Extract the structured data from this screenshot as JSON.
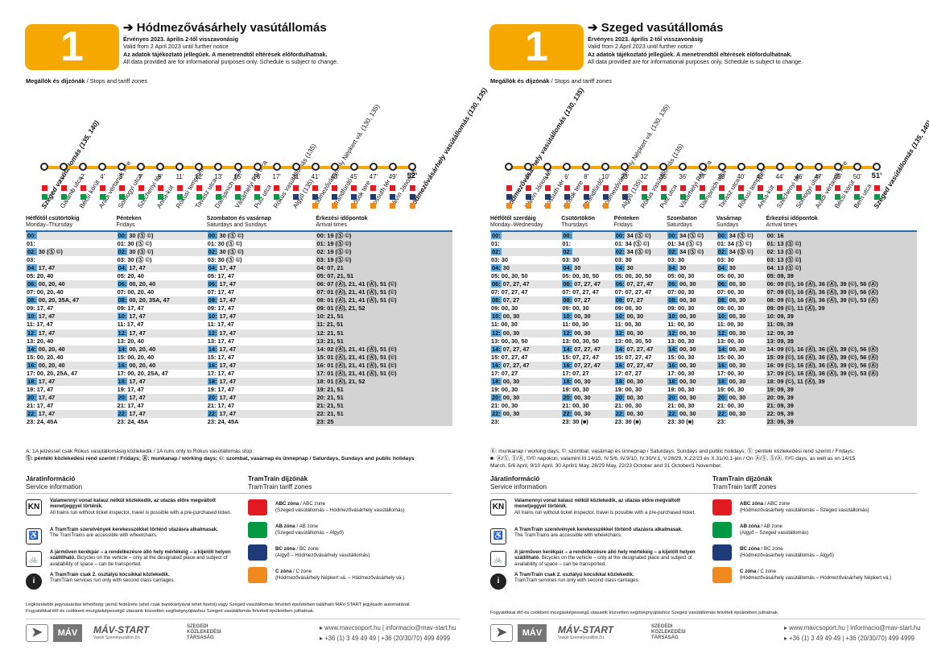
{
  "colors": {
    "accent": "#f5a800",
    "blue": "#5ba9df",
    "zoneA": "#e21b23",
    "zoneB": "#009a44",
    "zoneC": "#1f3a79",
    "zoneD": "#f08a1c"
  },
  "common": {
    "line_number": "1",
    "valid_hu": "Érvényes 2023. április 2-től visszavonásig",
    "valid_en": "Valid from 2 April 2023 until further notice",
    "info_hu": "Az adatok tájékoztató jellegűek. A menetrendtől eltérések előfordulhatnak.",
    "info_en": "All data provided are for informational purposes only. Schedule is subject to change.",
    "stops_label_hu": "Megállók és díjzónák",
    "stops_label_en": " / Stops and tariff zones",
    "service_hu": "Járatinformáció",
    "service_en": "Service information",
    "tariff_hu": "TramTrain díjzónák",
    "tariff_en": "TramTrain tariff zones",
    "kn_icon": "KN",
    "info1_b": "Valamennyi vonat kalauz nélkül közlekedik, az utazás előre megváltott menetjeggyel történik.",
    "info1_n": "All trains run without ticket inspector, travel is possible with a pre-purchased ticket.",
    "info2_b": "A TramTrain szerelvények kerekesszékkel történő utazásra alkalmasak.",
    "info2_n": "The TramTrains are accessible with wheelchairs.",
    "info3_b": "A járműven kerékpár – a rendelkezésre álló hely mértékéig – a kijelölt helyen szállítható.",
    "info3_n": "Bicycles on the vehicle – only at the designated place and subject of availability of space – can be transported.",
    "info4_b": "A TramTrain csak 2. osztályú kocsikkal közlekedik.",
    "info4_n": "TramTrain services run only with second class carriages.",
    "info_icon": "i",
    "z1_t": "ABC zóna",
    "z1_e": " / ABC zone",
    "z2_t": "AB zóna",
    "z2_e": " / AB zone",
    "z3_t": "BC zóna",
    "z3_e": " / BC zone",
    "z4_t": "C zóna",
    "z4_e": " / C zone",
    "web": "www.mavcsoport.hu | informacio@mav-start.hu",
    "phone": "+36 (1) 3 49 49 49 | +36 (20/30/70) 499 4999",
    "logo1": "MÁV",
    "logo2": "MÁV-START",
    "logo2_sub": "Vasúti Személyszállító Zrt.",
    "logo3": "SZEGEDI KÖZLEKEDÉSI TÁRSASÁG"
  },
  "left": {
    "title": "Hódmezővásárhely vasútállomás",
    "stops": [
      "Szeged vasútállomás (135, 140)",
      "Galamb utca",
      "Bécsi körút",
      "Aradi vértanúk tere",
      "Somogyi utca",
      "Széchenyi tér",
      "Anna-kút",
      "Rókusi templom",
      "Tavasz utca",
      "Damjanich utca",
      "Vásárhelyi Pál utca",
      "Pulz utca",
      "Rókus vasútállomás (135)",
      "Algyő (135)",
      "Hódmezővásárhely Népkert vá. (130, 135)",
      "Strandfürdő",
      "Hősök tere",
      "Kossuth tér",
      "Kálvin János tér",
      "Hódmezővásárhely vasútállomás (130, 135)"
    ],
    "minutes": [
      "",
      "1'",
      "2'",
      "4'",
      "5'",
      "7'",
      "9'",
      "11'",
      "12'",
      "13'",
      "15'",
      "16'",
      "17'",
      "31'",
      "41'",
      "43'",
      "45'",
      "47'",
      "49'",
      "52'"
    ],
    "zones": [
      [
        "a",
        "b"
      ],
      [
        "a",
        "b"
      ],
      [
        "a",
        "b"
      ],
      [
        "a",
        "b"
      ],
      [
        "a",
        "b"
      ],
      [
        "a",
        "b"
      ],
      [
        "a",
        "b"
      ],
      [
        "a",
        "b"
      ],
      [
        "a",
        "b"
      ],
      [
        "a",
        "b"
      ],
      [
        "a",
        "b"
      ],
      [
        "a",
        "b"
      ],
      [
        "a",
        "b"
      ],
      [
        "a",
        "c"
      ],
      [
        "a",
        "c",
        "d"
      ],
      [
        "a",
        "c",
        "d"
      ],
      [
        "a",
        "c",
        "d"
      ],
      [
        "a",
        "c",
        "d"
      ],
      [
        "a",
        "c",
        "d"
      ],
      [
        "a",
        "c",
        "d"
      ]
    ],
    "headers": [
      [
        "Hétfőtől csütörtökig",
        "Monday–Thursday"
      ],
      [
        "Pénteken",
        "Fridays"
      ],
      [
        "Szombaton és vasárnap",
        "Saturdays and Sundays"
      ],
      [
        "Érkezési időpontok",
        "Arrival times"
      ]
    ],
    "rows": [
      [
        [
          "00:",
          ""
        ],
        [
          "00: 30 (Ⓢ ©)",
          ""
        ],
        [
          "00: 30 (Ⓢ ©)",
          ""
        ],
        [
          "00: 19 (Ⓢ ©)",
          ""
        ]
      ],
      [
        [
          "01:",
          ""
        ],
        [
          "01: 30 (Ⓢ ©)",
          ""
        ],
        [
          "01: 30 (Ⓢ ©)",
          ""
        ],
        [
          "01: 19 (Ⓢ ©)",
          ""
        ]
      ],
      [
        [
          "02: 30 (Ⓢ ©)",
          ""
        ],
        [
          "02: 30 (Ⓢ ©)",
          ""
        ],
        [
          "02: 30 (Ⓢ ©)",
          ""
        ],
        [
          "02: 19 (Ⓢ ©)",
          ""
        ]
      ],
      [
        [
          "03:",
          ""
        ],
        [
          "03: 30 (Ⓢ ©)",
          ""
        ],
        [
          "03: 30 (Ⓢ ©)",
          ""
        ],
        [
          "03: 19 (Ⓢ ©)",
          ""
        ]
      ],
      [
        [
          "04: 17, 47",
          ""
        ],
        [
          "04: 17, 47",
          ""
        ],
        [
          "04: 17, 47",
          ""
        ],
        [
          "04: 07, 21",
          ""
        ]
      ],
      [
        [
          "05: 20, 40",
          ""
        ],
        [
          "05: 20, 40",
          ""
        ],
        [
          "05: 17, 47",
          ""
        ],
        [
          "05: 07, 21, 51",
          ""
        ]
      ],
      [
        [
          "06: 00, 20, 40",
          ""
        ],
        [
          "06: 00, 20, 40",
          ""
        ],
        [
          "06: 17, 47",
          ""
        ],
        [
          "06: 07 (Ⓐ), 21, 41 (Ⓐ), 51 (©)",
          ""
        ]
      ],
      [
        [
          "07: 00, 20, 40",
          ""
        ],
        [
          "07: 00, 20, 40",
          ""
        ],
        [
          "07: 17, 47",
          ""
        ],
        [
          "07: 01 (Ⓐ), 21, 41 (Ⓐ), 51 (©)",
          ""
        ]
      ],
      [
        [
          "08: 00, 20, 35A, 47",
          ""
        ],
        [
          "08: 00, 20, 35A, 47",
          ""
        ],
        [
          "08: 17, 47",
          ""
        ],
        [
          "08: 01 (Ⓐ), 21, 41 (Ⓐ), 51 (©)",
          ""
        ]
      ],
      [
        [
          "09: 17, 47",
          ""
        ],
        [
          "09: 17, 47",
          ""
        ],
        [
          "09: 17, 47",
          ""
        ],
        [
          "09: 01 (Ⓐ), 21, 52",
          ""
        ]
      ],
      [
        [
          "10: 17, 47",
          ""
        ],
        [
          "10: 17, 47",
          ""
        ],
        [
          "10: 17, 47",
          ""
        ],
        [
          "10: 21, 51",
          ""
        ]
      ],
      [
        [
          "11: 17, 47",
          ""
        ],
        [
          "11: 17, 47",
          ""
        ],
        [
          "11: 17, 47",
          ""
        ],
        [
          "11: 21, 51",
          ""
        ]
      ],
      [
        [
          "12: 17, 47",
          ""
        ],
        [
          "12: 17, 47",
          ""
        ],
        [
          "12: 17, 47",
          ""
        ],
        [
          "12: 21, 51",
          ""
        ]
      ],
      [
        [
          "13: 20, 40",
          ""
        ],
        [
          "13: 20, 40",
          ""
        ],
        [
          "13: 17, 47",
          ""
        ],
        [
          "13: 21, 51",
          ""
        ]
      ],
      [
        [
          "14: 00, 20, 40",
          ""
        ],
        [
          "14: 00, 20, 40",
          ""
        ],
        [
          "14: 17, 47",
          ""
        ],
        [
          "14: 02 (Ⓐ), 21, 41 (Ⓐ), 51 (©)",
          ""
        ]
      ],
      [
        [
          "15: 00, 20, 40",
          ""
        ],
        [
          "15: 00, 20, 40",
          ""
        ],
        [
          "15: 17, 47",
          ""
        ],
        [
          "15: 01 (Ⓐ), 21, 41 (Ⓐ), 51 (©)",
          ""
        ]
      ],
      [
        [
          "16: 00, 20, 40",
          ""
        ],
        [
          "16: 00, 20, 40",
          ""
        ],
        [
          "16: 17, 47",
          ""
        ],
        [
          "16: 01 (Ⓐ), 21, 41 (Ⓐ), 51 (©)",
          ""
        ]
      ],
      [
        [
          "17: 00, 20, 25A, 47",
          ""
        ],
        [
          "17: 00, 20, 25A, 47",
          ""
        ],
        [
          "17: 17, 47",
          ""
        ],
        [
          "17: 01 (Ⓐ), 21, 41 (Ⓐ), 51 (©)",
          ""
        ]
      ],
      [
        [
          "18: 17, 47",
          ""
        ],
        [
          "18: 17, 47",
          ""
        ],
        [
          "18: 17, 47",
          ""
        ],
        [
          "18: 01 (Ⓐ), 21, 52",
          ""
        ]
      ],
      [
        [
          "19: 17, 47",
          ""
        ],
        [
          "19: 17, 47",
          ""
        ],
        [
          "19: 17, 47",
          ""
        ],
        [
          "19: 21, 51",
          ""
        ]
      ],
      [
        [
          "20: 17, 47",
          ""
        ],
        [
          "20: 17, 47",
          ""
        ],
        [
          "20: 17, 47",
          ""
        ],
        [
          "20: 21, 51",
          ""
        ]
      ],
      [
        [
          "21: 17, 47",
          ""
        ],
        [
          "21: 17, 47",
          ""
        ],
        [
          "21: 17, 47",
          ""
        ],
        [
          "21: 21, 51",
          ""
        ]
      ],
      [
        [
          "22: 17, 47",
          ""
        ],
        [
          "22: 17, 47",
          ""
        ],
        [
          "22: 17, 47",
          ""
        ],
        [
          "22: 21, 51",
          ""
        ]
      ],
      [
        [
          "23: 24, 45A",
          ""
        ],
        [
          "23: 24, 45A",
          ""
        ],
        [
          "23: 24, 45A",
          ""
        ],
        [
          "23: 25",
          ""
        ]
      ]
    ],
    "footnote1": "A: 1A jelzéssel csak Rókus vasútállomásig közlekedik / 1A runs only to Rókus vasútállomás stop;",
    "footnote2": "Ⓢ: péntéki közlekedési rend szerint / Fridays; Ⓐ: munkanap / working days; ©: szombat, vasárnap és ünnepnap / Saturdays, Sundays and public holidays",
    "z1_d": "(Szeged vasútállomás – Hódmezővásárhely vasútállomás)",
    "z2_d": "(Szeged vasútállomás – Algyő)",
    "z3_d": "(Algyő – Hódmezővásárhely vasútállomás)",
    "z4_d": "(Hódmezővásárhely Népkert vá. – Hódmezővásárhely vá.)",
    "bottom1": "Legközelebbi jegyvásárlási lehetőség: jármű fedélzete (ahol csak bankkártyával lehet fizetni) vagy Szeged vasútállomás felvételi épületében található MÁV-START jegykiadó automatánál.",
    "bottom2": "Fogyatékkal élő és csökkent mozgásképességű utasaink közvetlen segítségnyújtáshoz Szeged vasútállomás felvételi épületében juthatnak."
  },
  "right": {
    "title": "Szeged vasútállomás",
    "stops": [
      "Hódmezővásárhely vasútállomás (130, 135)",
      "Kálvin János tér",
      "Kossuth tér",
      "Hősök tere",
      "Strandfürdő",
      "Hódmezővásárhely Népkert vá. (130, 135)",
      "Algyő (135)",
      "Rókus vasútállomás (135)",
      "Pulz utca",
      "Vásárhelyi Pál utca",
      "Damjanich utca",
      "Tavasz utca",
      "Rókusi templom",
      "Anna-kút",
      "Széchenyi tér",
      "Somogyi utca",
      "Aradi vértanúk tere",
      "Bécsi körút",
      "Bem utca",
      "Szeged vasútállomás (135, 140)"
    ],
    "minutes": [
      "",
      "2'",
      "4'",
      "6'",
      "8'",
      "10'",
      "23'",
      "32'",
      "35'",
      "36'",
      "37'",
      "39'",
      "40'",
      "42'",
      "44'",
      "46'",
      "47'",
      "49'",
      "50'",
      "51'"
    ],
    "zones": [
      [
        "a",
        "c",
        "d"
      ],
      [
        "a",
        "c",
        "d"
      ],
      [
        "a",
        "c",
        "d"
      ],
      [
        "a",
        "c",
        "d"
      ],
      [
        "a",
        "c",
        "d"
      ],
      [
        "a",
        "c",
        "d"
      ],
      [
        "a",
        "c"
      ],
      [
        "a",
        "b"
      ],
      [
        "a",
        "b"
      ],
      [
        "a",
        "b"
      ],
      [
        "a",
        "b"
      ],
      [
        "a",
        "b"
      ],
      [
        "a",
        "b"
      ],
      [
        "a",
        "b"
      ],
      [
        "a",
        "b"
      ],
      [
        "a",
        "b"
      ],
      [
        "a",
        "b"
      ],
      [
        "a",
        "b"
      ],
      [
        "a",
        "b"
      ],
      [
        "a",
        "b"
      ]
    ],
    "headers": [
      [
        "Hétfőtől szerdáig",
        "Monday–Wednesday"
      ],
      [
        "Csütörtökön",
        "Thursdays"
      ],
      [
        "Pénteken",
        "Fridays"
      ],
      [
        "Szombaton",
        "Saturdays"
      ],
      [
        "Vasárnap",
        "Sundays"
      ],
      [
        "Érkezési időpontok",
        "Arrival times"
      ]
    ],
    "rows": [
      [
        "00:",
        "00:",
        "00: 34 (Ⓢ ©)",
        "00: 34 (Ⓢ ©)",
        "00: 34 (Ⓢ ©)",
        "00: 16"
      ],
      [
        "01:",
        "01:",
        "01: 34 (Ⓢ ©)",
        "01: 34 (Ⓢ ©)",
        "01: 34 (Ⓢ ©)",
        "01: 13 (Ⓢ ©)"
      ],
      [
        "02:",
        "02:",
        "02: 34 (Ⓢ ©)",
        "02: 34 (Ⓢ ©)",
        "02: 34 (Ⓢ ©)",
        "02: 13 (Ⓢ ©)"
      ],
      [
        "03: 30",
        "03: 30",
        "03: 30",
        "03: 30",
        "03: 30",
        "03: 13 (Ⓢ ©)"
      ],
      [
        "04: 30",
        "04: 30",
        "04: 30",
        "04: 30",
        "04: 30",
        "04: 13 (Ⓢ ©)"
      ],
      [
        "05: 00, 30, 50",
        "05: 00, 30, 50",
        "05: 00, 30, 50",
        "05: 00, 30",
        "05: 00, 30",
        "05: 09, 39"
      ],
      [
        "06: 07, 27, 47",
        "06: 07, 27, 47",
        "06: 07, 27, 47",
        "06: 00, 30",
        "06: 00, 30",
        "06: 09 (©), 16 (Ⓐ), 36 (Ⓐ), 39 (©), 56 (Ⓐ)"
      ],
      [
        "07: 07, 27, 47",
        "07: 07, 27, 47",
        "07: 07, 27, 47",
        "07: 00, 30",
        "07: 00, 30",
        "07: 09 (©), 16 (Ⓐ), 36 (Ⓐ), 39 (©), 56 (Ⓐ)"
      ],
      [
        "08: 07, 27",
        "08: 07, 27",
        "08: 07, 27",
        "08: 00, 30",
        "08: 00, 30",
        "08: 09 (©), 16 (Ⓐ), 36 (Ⓐ), 39 (©), 53 (Ⓐ)"
      ],
      [
        "09: 00, 30",
        "09: 00, 30",
        "09: 00, 30",
        "09: 00, 30",
        "09: 00, 30",
        "09: 09 (©), 11 (Ⓐ), 39"
      ],
      [
        "10: 00, 30",
        "10: 00, 30",
        "10: 00, 30",
        "10: 00, 30",
        "10: 00, 30",
        "10: 09, 39"
      ],
      [
        "11: 00, 30",
        "11: 00, 30",
        "11: 00, 30",
        "11: 00, 30",
        "11: 00, 30",
        "11: 09, 39"
      ],
      [
        "12: 00, 30",
        "12: 00, 30",
        "12: 00, 30",
        "12: 00, 30",
        "12: 00, 30",
        "12: 09, 39"
      ],
      [
        "13: 00, 30, 50",
        "13: 00, 30, 50",
        "13: 00, 30, 50",
        "13: 00, 30",
        "13: 00, 30",
        "13: 09, 39"
      ],
      [
        "14: 07, 27, 47",
        "14: 07, 27, 47",
        "14: 07, 27, 47",
        "14: 00, 30",
        "14: 00, 30",
        "14: 09 (©), 16 (Ⓐ), 36 (Ⓐ), 39 (©), 56 (Ⓐ)"
      ],
      [
        "15: 07, 27, 47",
        "15: 07, 27, 47",
        "15: 07, 27, 47",
        "15: 00, 30",
        "15: 00, 30",
        "15: 09 (©), 16 (Ⓐ), 36 (Ⓐ), 39 (©), 56 (Ⓐ)"
      ],
      [
        "16: 07, 27, 47",
        "16: 07, 27, 47",
        "16: 07, 27, 47",
        "16: 00, 30",
        "16: 00, 30",
        "16: 09 (©), 16 (Ⓐ), 36 (Ⓐ), 39 (©), 56 (Ⓐ)"
      ],
      [
        "17: 07, 27",
        "17: 07, 27",
        "17: 07, 27",
        "17: 00, 30",
        "17: 00, 30",
        "17: 09 (©), 16 (Ⓐ), 36 (Ⓐ), 39 (©), 53 (Ⓐ)"
      ],
      [
        "18: 00, 30",
        "18: 00, 30",
        "18: 00, 30",
        "18: 00, 30",
        "18: 00, 30",
        "18: 09 (©), 11 (Ⓐ), 39"
      ],
      [
        "19: 00, 30",
        "19: 00, 30",
        "19: 00, 30",
        "19: 00, 30",
        "19: 00, 30",
        "19: 09, 39"
      ],
      [
        "20: 00, 30",
        "20: 00, 30",
        "20: 00, 30",
        "20: 00, 30",
        "20: 00, 30",
        "20: 09, 39"
      ],
      [
        "21: 00, 30",
        "21: 00, 30",
        "21: 00, 30",
        "21: 00, 30",
        "21: 00, 30",
        "21: 09, 39"
      ],
      [
        "22: 00, 30",
        "22: 00, 30",
        "22: 00, 30",
        "22: 00, 30",
        "22: 00, 30",
        "22: 09, 39"
      ],
      [
        "23:",
        "23: 30 (■)",
        "23: 30 (■)",
        "23: 30 (■)",
        "23:",
        "23: 09, 39"
      ]
    ],
    "footnote1": "Ⓐ: munkanap / working days; ©: szombat, vasárnap és ünnepnap / Saturdays, Sundays and public holidays; Ⓢ: pénteki közlekedési rend szerint / Fridays;",
    "footnote2": "■: Ⓐ/Ⓢ, Ⓢ/Ⓐ, ©/© napokon, valamint III.14/15, IV.5/6, IV.9/10, IV.30/V.1, V.28/29, X.22/23 és X.31/XI.1-jén / On Ⓐ/Ⓢ, Ⓢ/Ⓐ, ©/© days, as well as on 14/15",
    "footnote3": "March, 5/6 April, 9/10 April, 30 April/1 May, 28/29 May, 22/23 October and 31 October/1 November.",
    "z1_d": "(Hódmezővásárhely vasútállomás – Szeged vasútállomás)",
    "z2_d": "(Algyő – Szeged vasútállomás)",
    "z3_d": "(Hódmezővásárhely vasútállomás – Algyő)",
    "z4_d": "(Hódmezővásárhely vasútállomás – Hódmezővásárhely Népkert vá.)",
    "bottom1": "Fogyatékkal élő és csökkent mozgásképességű utasaink közvetlen segítségnyújtáshoz Szeged vasútállomás felvételi épületében juthatnak."
  }
}
